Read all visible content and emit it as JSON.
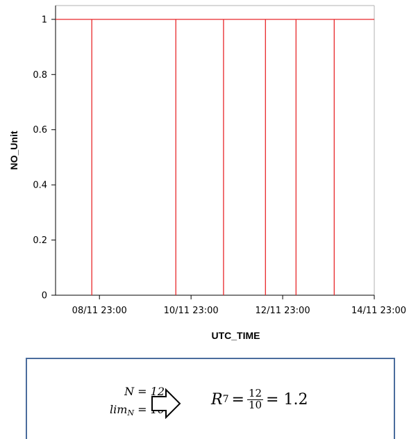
{
  "chart_data": {
    "type": "line",
    "xlabel": "UTC_TIME",
    "ylabel": "NO_Unit",
    "x_ticks": [
      "08/11 23:00",
      "10/11 23:00",
      "12/11 23:00",
      "14/11 23:00"
    ],
    "y_ticks": [
      "0",
      "0.2",
      "0.4",
      "0.6",
      "0.8",
      "1"
    ],
    "ylim": [
      0,
      1.05
    ],
    "xlim": [
      "08/11 00:00",
      "14/11 23:00"
    ],
    "grid": false,
    "series": [
      {
        "color": "#e8272a",
        "x": [
          "08/11 00:00",
          "08/11 19:00",
          "08/11 19:00",
          "08/11 19:00",
          "10/11 15:00",
          "10/11 15:00",
          "10/11 15:00",
          "11/11 16:00",
          "11/11 16:00",
          "11/11 16:00",
          "12/11 14:00",
          "12/11 14:00",
          "12/11 14:00",
          "13/11 06:00",
          "13/11 06:00",
          "13/11 06:00",
          "14/11 02:00",
          "14/11 02:00",
          "14/11 02:00",
          "14/11 23:00"
        ],
        "y": [
          1,
          1,
          0,
          1,
          1,
          0,
          1,
          1,
          0,
          1,
          1,
          0,
          1,
          1,
          0,
          1,
          1,
          0,
          1,
          1
        ]
      }
    ]
  },
  "formula": {
    "n_line": "N = 12",
    "lim_sym": "lim",
    "lim_sub": "N",
    "lim_value": " = 10",
    "r_sym": "R",
    "r_sub": "7",
    "eq1": "=",
    "numerator": "12",
    "denominator": "10",
    "eq2": "= 1.2"
  },
  "colors": {
    "series": "#e8272a",
    "box_border": "#4a6c9c",
    "axis": "#000000",
    "frame": "#b0b0b0"
  },
  "icons": {
    "arrow": "right-arrow-icon"
  }
}
